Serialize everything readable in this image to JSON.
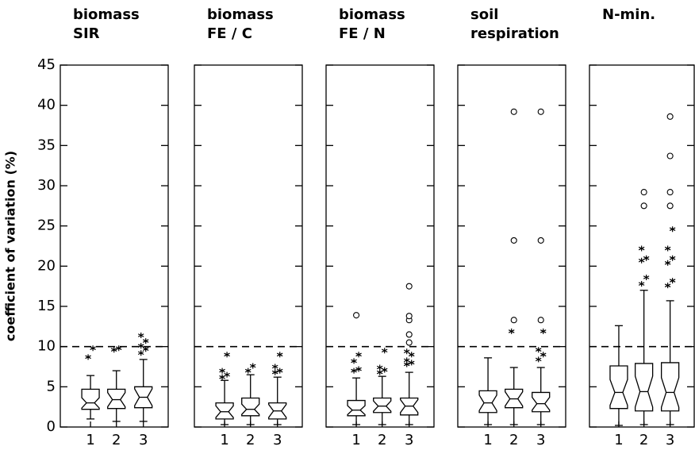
{
  "chart_data": [
    {
      "type": "box",
      "title": [
        "biomass",
        "SIR"
      ],
      "y_label": "coefficient of variation (%)",
      "categories": [
        "1",
        "2",
        "3"
      ],
      "ylim": [
        0,
        45
      ],
      "yticks": [
        0,
        5,
        10,
        15,
        20,
        25,
        30,
        35,
        40,
        45
      ],
      "hline": 10,
      "boxes": [
        {
          "whislo": 1.0,
          "q1": 2.2,
          "med": 3.0,
          "q3": 4.7,
          "whishi": 6.4,
          "fliers": [
            8.7,
            9.8
          ],
          "extremes": []
        },
        {
          "whislo": 0.7,
          "q1": 2.3,
          "med": 3.4,
          "q3": 4.7,
          "whishi": 7.0,
          "fliers": [
            9.6,
            9.8
          ],
          "extremes": []
        },
        {
          "whislo": 0.7,
          "q1": 2.4,
          "med": 3.7,
          "q3": 5.0,
          "whishi": 8.4,
          "fliers": [
            9.2,
            9.7,
            10.1,
            10.7,
            11.4
          ],
          "extremes": []
        }
      ]
    },
    {
      "type": "box",
      "title": [
        "biomass",
        "FE / C"
      ],
      "categories": [
        "1",
        "2",
        "3"
      ],
      "ylim": [
        0,
        45
      ],
      "yticks": [
        0,
        5,
        10,
        15,
        20,
        25,
        30,
        35,
        40,
        45
      ],
      "hline": 10,
      "boxes": [
        {
          "whislo": 0.3,
          "q1": 1.0,
          "med": 1.9,
          "q3": 3.0,
          "whishi": 5.8,
          "fliers": [
            6.2,
            6.5,
            7.0,
            9.0
          ],
          "extremes": []
        },
        {
          "whislo": 0.3,
          "q1": 1.4,
          "med": 2.2,
          "q3": 3.6,
          "whishi": 6.5,
          "fliers": [
            7.0,
            7.6
          ],
          "extremes": []
        },
        {
          "whislo": 0.3,
          "q1": 1.0,
          "med": 2.0,
          "q3": 3.0,
          "whishi": 6.2,
          "fliers": [
            6.8,
            7.0,
            7.5,
            9.0
          ],
          "extremes": []
        }
      ]
    },
    {
      "type": "box",
      "title": [
        "biomass",
        "FE / N"
      ],
      "categories": [
        "1",
        "2",
        "3"
      ],
      "ylim": [
        0,
        45
      ],
      "yticks": [
        0,
        5,
        10,
        15,
        20,
        25,
        30,
        35,
        40,
        45
      ],
      "hline": 10,
      "boxes": [
        {
          "whislo": 0.3,
          "q1": 1.4,
          "med": 2.1,
          "q3": 3.3,
          "whishi": 6.1,
          "fliers": [
            7.0,
            7.2,
            8.2,
            9.0
          ],
          "extremes": [
            13.9
          ]
        },
        {
          "whislo": 0.3,
          "q1": 1.8,
          "med": 2.6,
          "q3": 3.6,
          "whishi": 6.3,
          "fliers": [
            6.8,
            7.1,
            7.4,
            9.5
          ],
          "extremes": []
        },
        {
          "whislo": 0.3,
          "q1": 1.5,
          "med": 2.6,
          "q3": 3.6,
          "whishi": 6.8,
          "fliers": [
            7.8,
            8.0,
            8.3,
            9.0,
            9.4
          ],
          "extremes": [
            10.5,
            11.5,
            13.3,
            13.8,
            17.5
          ]
        }
      ]
    },
    {
      "type": "box",
      "title": [
        "soil",
        "respiration"
      ],
      "categories": [
        "1",
        "2",
        "3"
      ],
      "ylim": [
        0,
        45
      ],
      "yticks": [
        0,
        5,
        10,
        15,
        20,
        25,
        30,
        35,
        40,
        45
      ],
      "hline": 10,
      "boxes": [
        {
          "whislo": 0.3,
          "q1": 1.8,
          "med": 3.0,
          "q3": 4.5,
          "whishi": 8.6,
          "fliers": [],
          "extremes": []
        },
        {
          "whislo": 0.3,
          "q1": 2.4,
          "med": 3.5,
          "q3": 4.7,
          "whishi": 7.4,
          "fliers": [
            11.9
          ],
          "extremes": [
            13.3,
            23.2,
            39.2
          ]
        },
        {
          "whislo": 0.3,
          "q1": 1.9,
          "med": 2.9,
          "q3": 4.3,
          "whishi": 7.4,
          "fliers": [
            8.4,
            9.0,
            9.6,
            11.9
          ],
          "extremes": [
            13.3,
            23.2,
            39.2
          ]
        }
      ]
    },
    {
      "type": "box",
      "title": [
        "N-min."
      ],
      "categories": [
        "1",
        "2",
        "3"
      ],
      "ylim": [
        0,
        45
      ],
      "yticks": [
        0,
        5,
        10,
        15,
        20,
        25,
        30,
        35,
        40,
        45
      ],
      "hline": 10,
      "boxes": [
        {
          "whislo": 0.2,
          "q1": 2.3,
          "med": 4.3,
          "q3": 7.6,
          "whishi": 12.6,
          "fliers": [],
          "extremes": []
        },
        {
          "whislo": 0.3,
          "q1": 2.0,
          "med": 4.4,
          "q3": 7.9,
          "whishi": 17.0,
          "fliers": [
            17.8,
            18.6,
            20.7,
            21.0,
            22.2
          ],
          "extremes": [
            27.5,
            29.2
          ]
        },
        {
          "whislo": 0.3,
          "q1": 2.0,
          "med": 4.3,
          "q3": 8.0,
          "whishi": 15.7,
          "fliers": [
            17.6,
            18.2,
            20.4,
            21.0,
            22.2,
            24.6
          ],
          "extremes": [
            27.5,
            29.2,
            33.7,
            38.6
          ]
        }
      ]
    }
  ]
}
